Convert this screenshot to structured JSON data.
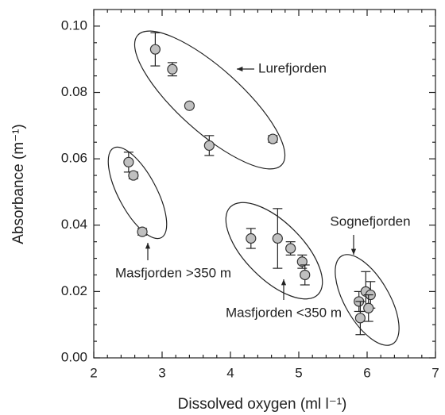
{
  "chart_data": {
    "type": "scatter",
    "x_label": "Dissolved oxygen (ml l⁻¹)",
    "y_label": "Absorbance (m⁻¹)",
    "xlim": [
      2,
      7
    ],
    "ylim": [
      0,
      0.105
    ],
    "xticks": [
      2,
      3,
      4,
      5,
      6,
      7
    ],
    "yticks": [
      {
        "value": 0,
        "label": "0.00"
      },
      {
        "value": 0.02,
        "label": "0.02"
      },
      {
        "value": 0.04,
        "label": "0.04"
      },
      {
        "value": 0.06,
        "label": "0.06"
      },
      {
        "value": 0.08,
        "label": "0.08"
      },
      {
        "value": 0.1,
        "label": "0.10"
      }
    ],
    "color": "#c0c0c0",
    "series": [
      {
        "name": "Lurefjorden",
        "x": [
          2.9,
          3.15,
          3.4,
          3.69,
          4.62
        ],
        "values": [
          0.093,
          0.087,
          0.076,
          0.064,
          0.066
        ],
        "errors": [
          0.005,
          0.002,
          null,
          0.003,
          0.001
        ]
      },
      {
        "name": "Masfjorden >350 m",
        "x": [
          2.51,
          2.58,
          2.71
        ],
        "values": [
          0.059,
          0.055,
          0.038
        ],
        "errors": [
          0.003,
          0.001,
          0.001
        ]
      },
      {
        "name": "Masfjorden <350 m",
        "x": [
          4.3,
          4.69,
          4.88,
          5.05,
          5.09
        ],
        "values": [
          0.036,
          0.036,
          0.033,
          0.029,
          0.025
        ],
        "errors": [
          0.003,
          0.009,
          0.002,
          0.002,
          0.003
        ]
      },
      {
        "name": "Sognefjorden",
        "x": [
          5.88,
          5.98,
          6.05,
          6.02,
          5.9
        ],
        "values": [
          0.017,
          0.02,
          0.019,
          0.015,
          0.012
        ],
        "errors": [
          0.003,
          0.006,
          0.004,
          0.004,
          0.005
        ]
      }
    ]
  }
}
